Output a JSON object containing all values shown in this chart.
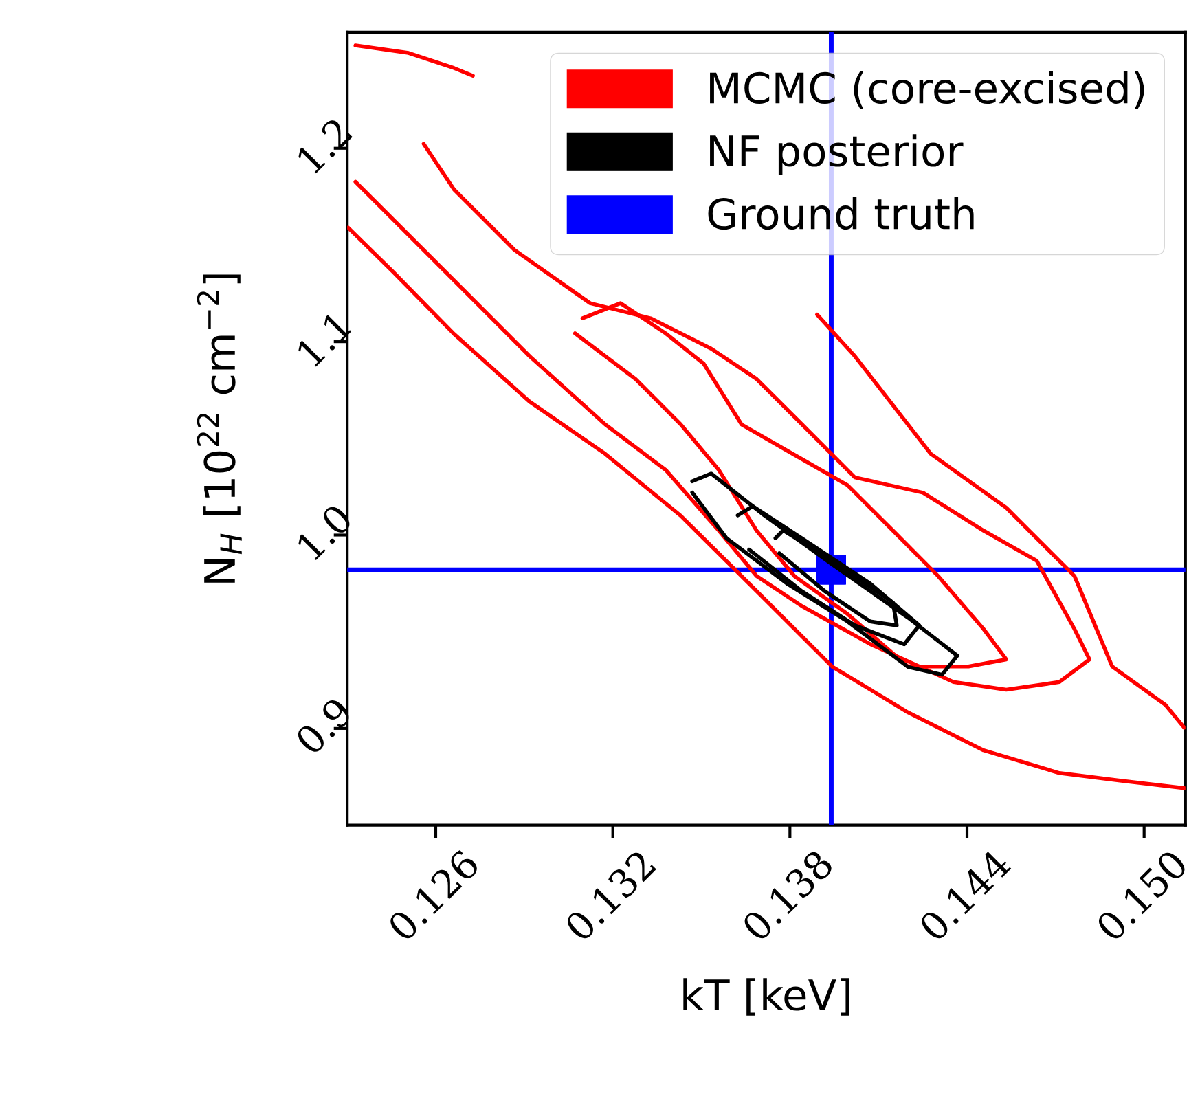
{
  "chart_data": {
    "type": "line",
    "xlabel": "kT [keV]",
    "ylabel": "N$_{H}$ [10$^{22}$ cm$^{−2}$]",
    "xlim": [
      0.123,
      0.1514
    ],
    "ylim": [
      0.85,
      1.26
    ],
    "xticks": [
      0.126,
      0.132,
      0.138,
      0.144,
      {
        "value": 0.15,
        "label": "0.150"
      }
    ],
    "yticks": [
      0.9,
      {
        "value": 1.0,
        "label": "1.0"
      },
      1.1,
      1.2
    ],
    "grid": false,
    "legend": "top right",
    "marker": "none",
    "line_style": "solid",
    "series": [
      {
        "name": "MCMC (core-excised)",
        "color": "#ff0000",
        "x": [
          0.12303,
          0.12456,
          0.12662,
          0.12918,
          0.13174,
          0.1343,
          0.13687,
          0.13943,
          0.142,
          0.14456,
          0.14713,
          0.14918,
          0.15136
        ],
        "values": [
          1.159,
          1.136,
          1.104,
          1.069,
          1.042,
          1.01,
          0.971,
          0.932,
          0.9083,
          0.8887,
          0.8769,
          0.873,
          0.8691
        ]
      },
      {
        "color": "#ff0000",
        "x": [
          0.13892,
          0.1402,
          0.14277,
          0.14533,
          0.14764,
          0.14892,
          0.15072,
          0.15136
        ],
        "values": [
          1.114,
          1.0925,
          1.042,
          1.0141,
          0.9788,
          0.932,
          0.9122,
          0.9004
        ]
      },
      {
        "color": "#ff0000",
        "x": [
          0.12328,
          0.12508,
          0.12662,
          0.12726
        ],
        "values": [
          1.2532,
          1.2493,
          1.2415,
          1.2375
        ]
      },
      {
        "color": "#ff0000",
        "x": [
          0.12559,
          0.12662,
          0.12867,
          0.13123,
          0.13328,
          0.13533,
          0.13687,
          0.13841,
          0.1402,
          0.14251,
          0.14456,
          0.14636,
          0.14764,
          0.14815,
          0.14713,
          0.14533,
          0.14354,
          0.14072,
          0.13841,
          0.13687,
          0.13559,
          0.13379,
          0.13174,
          0.12918,
          0.12662,
          0.12456,
          0.12328
        ],
        "values": [
          1.2023,
          1.1787,
          1.1474,
          1.1199,
          1.1121,
          1.0964,
          1.0807,
          1.0572,
          1.0298,
          1.0219,
          1.0023,
          0.9867,
          0.9514,
          0.9357,
          0.924,
          0.92,
          0.924,
          0.9436,
          0.9632,
          0.9788,
          1.0023,
          1.0337,
          1.0572,
          1.0925,
          1.1317,
          1.1631,
          1.1827
        ]
      },
      {
        "color": "#ff0000",
        "x": [
          0.13072,
          0.13277,
          0.1343,
          0.13559,
          0.13687,
          0.13815,
          0.13995,
          0.142,
          0.14405,
          0.14533,
          0.14456,
          0.14302,
          0.14149,
          0.13995,
          0.13815,
          0.13636,
          0.13508,
          0.13379,
          0.13226,
          0.13097
        ],
        "values": [
          1.1043,
          1.0807,
          1.0572,
          1.0337,
          1.0023,
          0.9788,
          0.9592,
          0.932,
          0.932,
          0.9357,
          0.9514,
          0.9788,
          1.0023,
          1.0258,
          1.0415,
          1.0572,
          1.0886,
          1.1043,
          1.1199,
          1.1121
        ]
      },
      {
        "name": "NF posterior",
        "color": "#000000",
        "x": [
          0.13469,
          0.13533,
          0.13713,
          0.13944,
          0.142,
          0.14367,
          0.14315,
          0.142,
          0.13995,
          0.1379,
          0.13585,
          0.13469
        ],
        "values": [
          1.0278,
          1.0318,
          1.0102,
          0.9847,
          0.9573,
          0.9376,
          0.9278,
          0.9318,
          0.9553,
          0.9749,
          0.9984,
          1.022
        ]
      },
      {
        "color": "#000000",
        "x": [
          0.13623,
          0.13674,
          0.1384,
          0.14072,
          0.14238,
          0.14187,
          0.1402,
          0.1384,
          0.13662
        ],
        "values": [
          1.0102,
          1.0149,
          0.9984,
          0.9749,
          0.9533,
          0.9435,
          0.9533,
          0.971,
          0.9925
        ]
      },
      {
        "color": "#000000",
        "x": [
          0.13751,
          0.13777,
          0.13944,
          0.14149,
          0.14162,
          0.14072,
          0.13918,
          0.13764
        ],
        "values": [
          0.9984,
          1.0024,
          0.9867,
          0.9651,
          0.9533,
          0.9553,
          0.971,
          0.9906
        ]
      },
      {
        "name": "Ground truth",
        "color": "#0000ff",
        "type": "scatter",
        "marker": "square",
        "x": [
          0.1394
        ],
        "values": [
          0.982
        ]
      }
    ],
    "ref_lines": [
      {
        "axis": "x",
        "value": 0.1394,
        "color": "#0000ff"
      },
      {
        "axis": "y",
        "value": 0.982,
        "color": "#0000ff"
      }
    ]
  }
}
